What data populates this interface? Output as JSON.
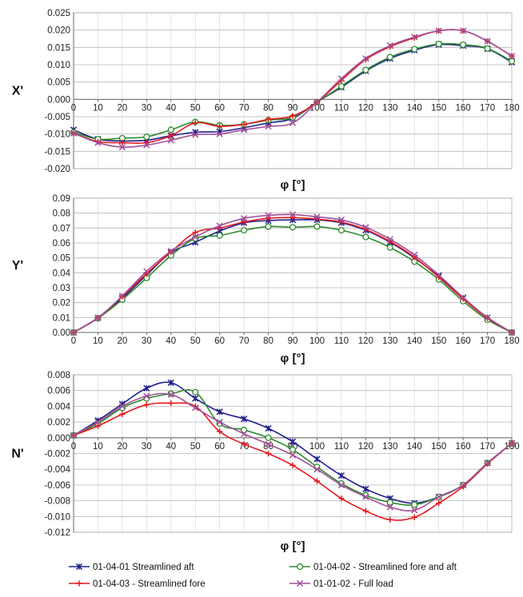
{
  "chart_data": [
    {
      "type": "line",
      "ylabel": "X'",
      "xlabel": "φ [°]",
      "x": [
        0,
        10,
        20,
        30,
        40,
        50,
        60,
        70,
        80,
        90,
        100,
        110,
        120,
        130,
        140,
        150,
        160,
        170,
        180
      ],
      "xlim": [
        0,
        180
      ],
      "ylim": [
        -0.02,
        0.025
      ],
      "yticks": [
        0.025,
        0.02,
        0.015,
        0.01,
        0.005,
        0.0,
        -0.005,
        -0.01,
        -0.015,
        -0.02
      ],
      "ytick_labels": [
        "0.025",
        "0.020",
        "0.015",
        "0.010",
        "0.005",
        "0.000",
        "-0.005",
        "-0.010",
        "-0.015",
        "-0.020"
      ],
      "xtick_labels": [
        "0",
        "10",
        "20",
        "30",
        "40",
        "50",
        "60",
        "70",
        "80",
        "90",
        "100",
        "110",
        "120",
        "130",
        "140",
        "150",
        "160",
        "170",
        "180"
      ],
      "grid": true,
      "series": [
        {
          "name": "01-04-01 Streamlined aft",
          "values": [
            -0.0088,
            -0.0115,
            -0.012,
            -0.0118,
            -0.0105,
            -0.0095,
            -0.0093,
            -0.0082,
            -0.0068,
            -0.0055,
            -0.0008,
            0.0035,
            0.0082,
            0.0118,
            0.0142,
            0.0158,
            0.0155,
            0.0146,
            0.0107
          ]
        },
        {
          "name": "01-04-02 - Streamlined fore and aft",
          "values": [
            -0.0095,
            -0.0115,
            -0.0112,
            -0.0108,
            -0.0088,
            -0.0065,
            -0.0075,
            -0.0072,
            -0.006,
            -0.0052,
            -0.0008,
            0.0038,
            0.0085,
            0.0122,
            0.0145,
            0.016,
            0.0158,
            0.0147,
            0.011
          ]
        },
        {
          "name": "01-04-03 - Streamlined fore",
          "values": [
            -0.0098,
            -0.0122,
            -0.0125,
            -0.0125,
            -0.0105,
            -0.0068,
            -0.0078,
            -0.0072,
            -0.0058,
            -0.0048,
            -0.0008,
            0.0055,
            0.0115,
            0.0152,
            0.0178,
            0.0198,
            0.0198,
            0.0168,
            0.0125
          ]
        },
        {
          "name": "01-01-02 - Full load",
          "values": [
            -0.0098,
            -0.0125,
            -0.0138,
            -0.0132,
            -0.0118,
            -0.0102,
            -0.01,
            -0.0088,
            -0.0078,
            -0.0068,
            -0.0008,
            0.006,
            0.0118,
            0.0155,
            0.018,
            0.0198,
            0.0198,
            0.0168,
            0.0125
          ]
        }
      ]
    },
    {
      "type": "line",
      "ylabel": "Y'",
      "xlabel": "φ [°]",
      "x": [
        0,
        10,
        20,
        30,
        40,
        50,
        60,
        70,
        80,
        90,
        100,
        110,
        120,
        130,
        140,
        150,
        160,
        170,
        180
      ],
      "xlim": [
        0,
        180
      ],
      "ylim": [
        0,
        0.09
      ],
      "yticks": [
        0.09,
        0.08,
        0.07,
        0.06,
        0.05,
        0.04,
        0.03,
        0.02,
        0.01,
        0.0
      ],
      "ytick_labels": [
        "0.09",
        "0.08",
        "0.07",
        "0.06",
        "0.05",
        "0.04",
        "0.03",
        "0.02",
        "0.01",
        "0.00"
      ],
      "xtick_labels": [
        "0",
        "10",
        "20",
        "30",
        "40",
        "50",
        "60",
        "70",
        "80",
        "90",
        "100",
        "110",
        "120",
        "130",
        "140",
        "150",
        "160",
        "170",
        "180"
      ],
      "grid": true,
      "series": [
        {
          "name": "01-04-01 Streamlined aft",
          "values": [
            0,
            0.0098,
            0.023,
            0.0385,
            0.0535,
            0.0605,
            0.068,
            0.0735,
            0.075,
            0.0755,
            0.0755,
            0.0735,
            0.0685,
            0.0605,
            0.05,
            0.0375,
            0.023,
            0.01,
            0
          ]
        },
        {
          "name": "01-04-02 - Streamlined fore and aft",
          "values": [
            0,
            0.0095,
            0.022,
            0.0365,
            0.0515,
            0.063,
            0.065,
            0.0685,
            0.071,
            0.0705,
            0.071,
            0.0685,
            0.064,
            0.057,
            0.0475,
            0.0355,
            0.021,
            0.0085,
            0
          ]
        },
        {
          "name": "01-04-03 - Streamlined fore",
          "values": [
            0,
            0.0098,
            0.024,
            0.0395,
            0.054,
            0.067,
            0.07,
            0.074,
            0.0765,
            0.077,
            0.076,
            0.074,
            0.069,
            0.061,
            0.0505,
            0.037,
            0.0225,
            0.0095,
            0
          ]
        },
        {
          "name": "01-01-02 - Full load",
          "values": [
            0,
            0.0098,
            0.0245,
            0.041,
            0.0545,
            0.064,
            0.0715,
            0.0765,
            0.0785,
            0.079,
            0.0775,
            0.0755,
            0.0705,
            0.0625,
            0.052,
            0.0385,
            0.0235,
            0.01,
            0
          ]
        }
      ]
    },
    {
      "type": "line",
      "ylabel": "N'",
      "xlabel": "φ [°]",
      "x": [
        0,
        10,
        20,
        30,
        40,
        50,
        60,
        70,
        80,
        90,
        100,
        110,
        120,
        130,
        140,
        150,
        160,
        170,
        180
      ],
      "xlim": [
        0,
        180
      ],
      "ylim": [
        -0.012,
        0.008
      ],
      "yticks": [
        0.008,
        0.006,
        0.004,
        0.002,
        0.0,
        -0.002,
        -0.004,
        -0.006,
        -0.008,
        -0.01,
        -0.012
      ],
      "ytick_labels": [
        "0.008",
        "0.006",
        "0.004",
        "0.002",
        "0.000",
        "-0.002",
        "-0.004",
        "-0.006",
        "-0.008",
        "-0.010",
        "-0.012"
      ],
      "xtick_labels": [
        "0",
        "10",
        "20",
        "30",
        "40",
        "50",
        "60",
        "70",
        "80",
        "90",
        "100",
        "110",
        "120",
        "130",
        "140",
        "150",
        "160",
        "170",
        "180"
      ],
      "grid": true,
      "series": [
        {
          "name": "01-04-01 Streamlined aft",
          "values": [
            0.0003,
            0.0022,
            0.0043,
            0.0063,
            0.007,
            0.005,
            0.0033,
            0.0024,
            0.0012,
            -0.0005,
            -0.0027,
            -0.0048,
            -0.0065,
            -0.0077,
            -0.0083,
            -0.0075,
            -0.006,
            -0.0032,
            -0.0007
          ]
        },
        {
          "name": "01-04-02 - Streamlined fore and aft",
          "values": [
            0.0003,
            0.0018,
            0.0038,
            0.005,
            0.0056,
            0.0058,
            0.0018,
            0.001,
            0.0,
            -0.0015,
            -0.0037,
            -0.0058,
            -0.0073,
            -0.0082,
            -0.0085,
            -0.0075,
            -0.006,
            -0.0032,
            -0.0007
          ]
        },
        {
          "name": "01-04-03 - Streamlined fore",
          "values": [
            0.0003,
            0.0015,
            0.003,
            0.0042,
            0.0044,
            0.004,
            0.0008,
            -0.0008,
            -0.002,
            -0.0035,
            -0.0055,
            -0.0077,
            -0.0093,
            -0.0104,
            -0.0101,
            -0.0083,
            -0.0062,
            -0.0033,
            -0.0007
          ]
        },
        {
          "name": "01-01-02 - Full load",
          "values": [
            0.0003,
            0.002,
            0.004,
            0.0053,
            0.0055,
            0.0038,
            0.002,
            0.0005,
            -0.0008,
            -0.0022,
            -0.004,
            -0.006,
            -0.0075,
            -0.0088,
            -0.0092,
            -0.0075,
            -0.006,
            -0.0032,
            -0.0007
          ]
        }
      ]
    }
  ],
  "legend": {
    "placement": "bottom",
    "entries": [
      {
        "label": "01-04-01 Streamlined aft",
        "color": "#1f1f8f",
        "marker": "star"
      },
      {
        "label": "01-04-02 - Streamlined fore and aft",
        "color": "#2e8b2e",
        "marker": "circle"
      },
      {
        "label": "01-04-03 - Streamlined fore",
        "color": "#e8171c",
        "marker": "plus"
      },
      {
        "label": "01-01-02 - Full load",
        "color": "#a14f98",
        "marker": "x"
      }
    ]
  }
}
